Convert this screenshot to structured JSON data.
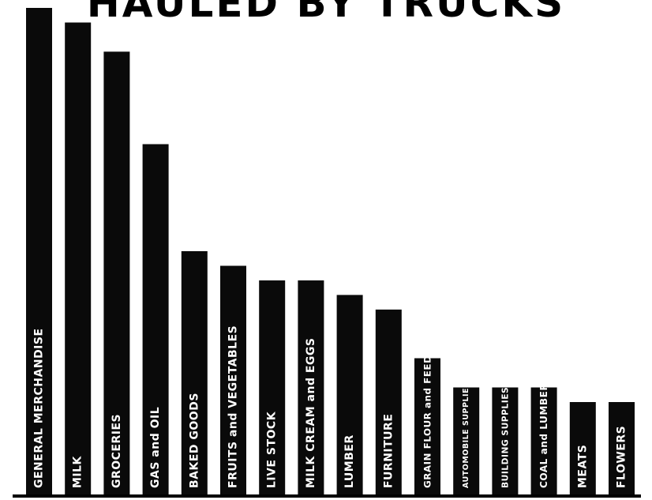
{
  "chart_data": {
    "type": "bar",
    "title": "HAULED BY TRUCKS",
    "xlabel": "",
    "ylabel": "",
    "categories": [
      "GENERAL MERCHANDISE",
      "MILK",
      "GROCERIES",
      "GAS and OIL",
      "BAKED GOODS",
      "FRUITS and VEGETABLES",
      "LIVE STOCK",
      "MILK CREAM and EGGS",
      "LUMBER",
      "FURNITURE",
      "GRAIN FLOUR and FEED",
      "AUTOMOBILE SUPPLIES",
      "BUILDING SUPPLIES",
      "COAL and LUMBER",
      "MEATS",
      "FLOWERS"
    ],
    "values": [
      100,
      97,
      91,
      72,
      50,
      47,
      44,
      44,
      41,
      38,
      28,
      22,
      22,
      22,
      19,
      19
    ],
    "ylim": [
      0,
      100
    ],
    "grid": false,
    "legend": "none",
    "colors": {
      "bar": "#0a0a0a",
      "label": "#ffffff",
      "background": "#ffffff",
      "baseline": "#000000"
    }
  }
}
